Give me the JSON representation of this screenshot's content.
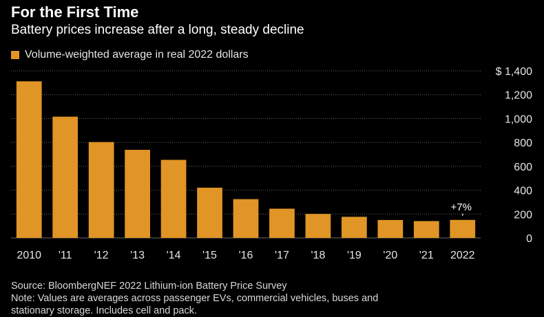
{
  "header": {
    "title": "For the First Time",
    "subtitle": "Battery prices increase after a long, steady decline"
  },
  "colors": {
    "bar": "#e09526",
    "background": "#000000",
    "grid": "#6a6a6a",
    "axis_text": "#e6e6e6"
  },
  "chart_data": {
    "type": "bar",
    "title": "For the First Time",
    "subtitle": "Battery prices increase after a long, steady decline",
    "legend": {
      "label": "Volume-weighted average in real 2022 dollars",
      "placement": "top-left"
    },
    "categories": [
      "2010",
      "'11",
      "'12",
      "'13",
      "'14",
      "'15",
      "'16",
      "'17",
      "'18",
      "'19",
      "'20",
      "'21",
      "2022"
    ],
    "series": [
      {
        "name": "Volume-weighted average in real 2022 dollars",
        "values": [
          1312,
          1016,
          803,
          738,
          654,
          421,
          325,
          245,
          201,
          177,
          150,
          141,
          151
        ]
      }
    ],
    "y_ticks": [
      0,
      200,
      400,
      600,
      800,
      1000,
      1200,
      1400
    ],
    "y_tick_labels": [
      "0",
      "200",
      "400",
      "600",
      "800",
      "1,000",
      "1,200",
      "$ 1,400"
    ],
    "ylim": [
      0,
      1400
    ],
    "y_axis_side": "right",
    "grid": true,
    "annotations": [
      {
        "category": "2022",
        "text": "+7%"
      }
    ]
  },
  "footer": {
    "source": "Source: BloombergNEF 2022 Lithium-ion Battery Price Survey",
    "note_line1": "Note: Values are averages across passenger EVs, commercial vehicles, buses and",
    "note_line2": "stationary storage. Includes cell and pack."
  }
}
